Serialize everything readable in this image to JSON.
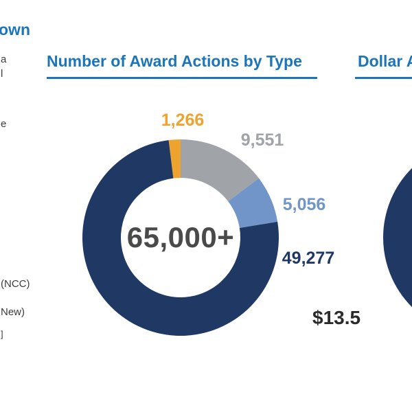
{
  "theme": {
    "accent_blue": "#1B75BB",
    "navy": "#1F3864",
    "gray": "#A0A4A9",
    "light_blue": "#7295C9",
    "orange": "#EFA32F",
    "center_text": "#4A4A4A",
    "dollar_text": "#2B2B2B"
  },
  "header": {
    "title_fragment": "own"
  },
  "left_column": {
    "fragments": [
      "a",
      "l",
      "e",
      "(NCC)",
      "New)",
      "]"
    ]
  },
  "awards_chart": {
    "title": "Number of Award Actions by Type",
    "center_label": "65,000+"
  },
  "dollar_chart": {
    "title": "Dollar A",
    "partial_label": "$13.5"
  },
  "chart_data": [
    {
      "type": "pie",
      "variant": "donut",
      "title": "Number of Award Actions by Type",
      "center_label": "65,000+",
      "labels": [
        "1,266",
        "9,551",
        "5,056",
        "49,277"
      ],
      "values": [
        1266,
        9551,
        5056,
        49277
      ],
      "colors": [
        "#EFA32F",
        "#A0A4A9",
        "#7295C9",
        "#1F3864"
      ],
      "legend_position": "none"
    },
    {
      "type": "pie",
      "variant": "donut",
      "title": "Dollar A",
      "labels": [
        "$13.5"
      ],
      "values": [
        13.5
      ],
      "colors": [
        "#1F3864"
      ],
      "note": "only left sliver of donut visible at right edge"
    }
  ]
}
